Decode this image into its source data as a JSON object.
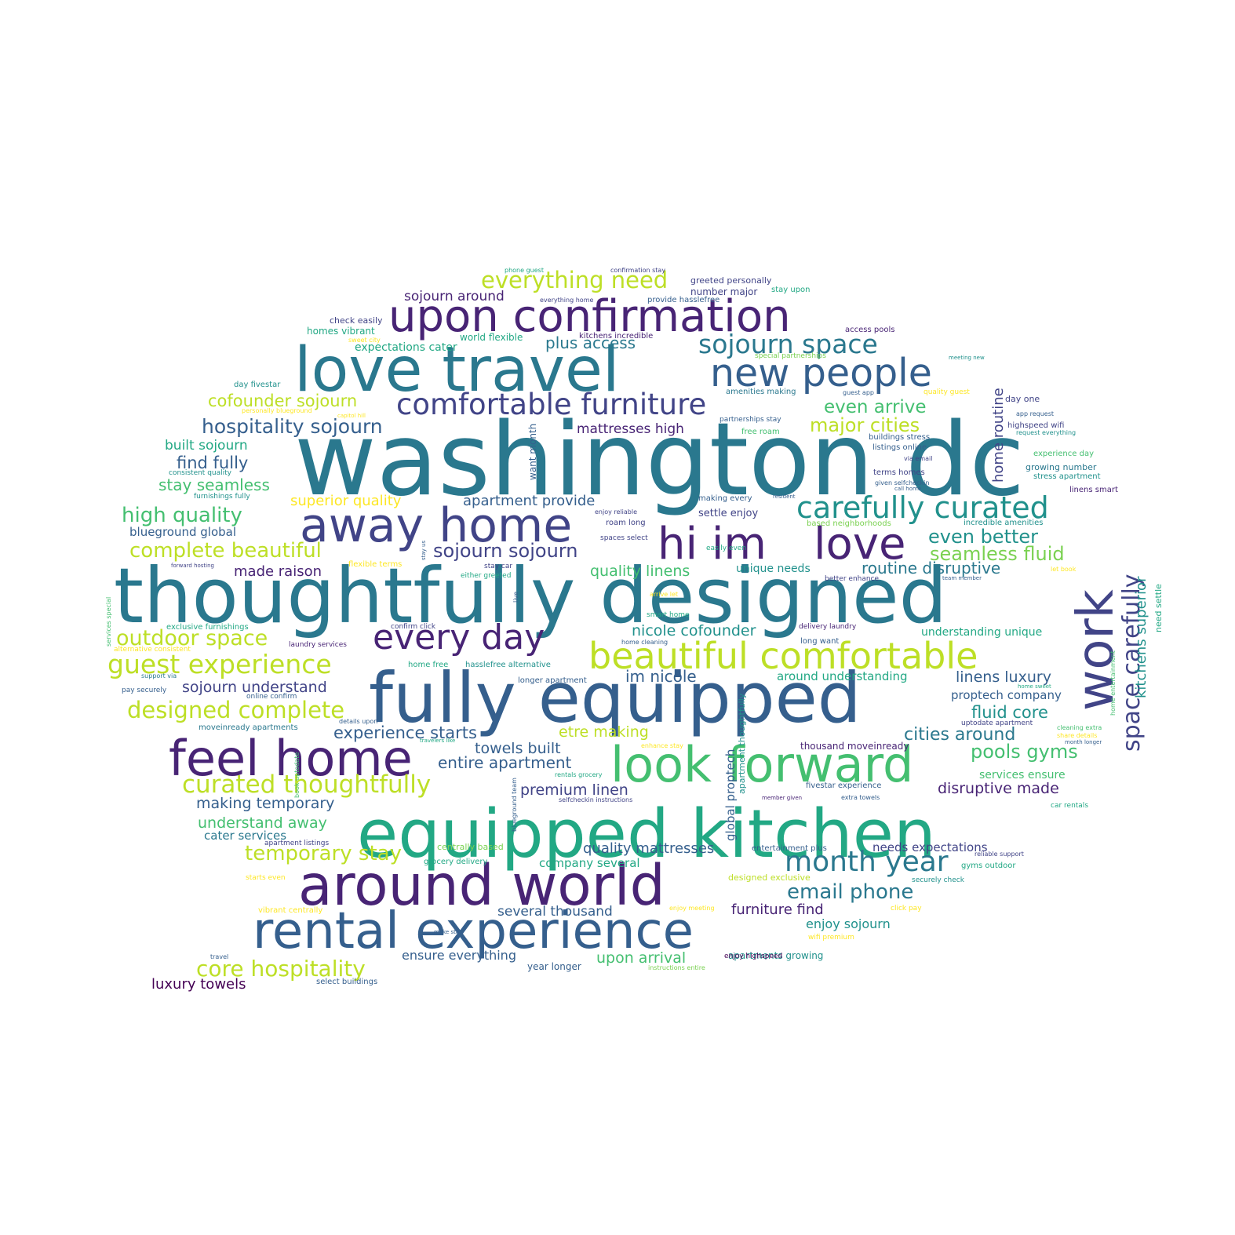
{
  "palette": {
    "p1": "#440154",
    "p2": "#482475",
    "p3": "#414487",
    "p4": "#355f8d",
    "p5": "#2a788e",
    "p6": "#21918c",
    "p7": "#22a884",
    "p8": "#44bf70",
    "p9": "#7ad151",
    "p10": "#bddf26",
    "p11": "#fde725"
  },
  "words": [
    {
      "text": "washington dc",
      "color": "p5"
    },
    {
      "text": "thoughtfully designed",
      "color": "p5"
    },
    {
      "text": "fully equipped",
      "color": "p4"
    },
    {
      "text": "equipped kitchen",
      "color": "p7"
    },
    {
      "text": "love travel",
      "color": "p5"
    },
    {
      "text": "upon confirmation",
      "color": "p2"
    },
    {
      "text": "around world",
      "color": "p2"
    },
    {
      "text": "rental experience",
      "color": "p4"
    },
    {
      "text": "feel home",
      "color": "p2"
    },
    {
      "text": "look forward",
      "color": "p8"
    },
    {
      "text": "away home",
      "color": "p3"
    },
    {
      "text": "hi im",
      "color": "p2"
    },
    {
      "text": "love",
      "color": "p2"
    },
    {
      "text": "work",
      "color": "p3"
    },
    {
      "text": "new people",
      "color": "p4"
    },
    {
      "text": "beautiful comfortable",
      "color": "p10"
    },
    {
      "text": "every day",
      "color": "p2"
    },
    {
      "text": "carefully curated",
      "color": "p6"
    },
    {
      "text": "comfortable furniture",
      "color": "p3"
    },
    {
      "text": "sojourn space",
      "color": "p5"
    },
    {
      "text": "everything need",
      "color": "p10"
    },
    {
      "text": "guest experience",
      "color": "p10"
    },
    {
      "text": "curated thoughtfully",
      "color": "p10"
    },
    {
      "text": "designed complete",
      "color": "p10"
    },
    {
      "text": "month year",
      "color": "p5"
    },
    {
      "text": "space carefully",
      "color": "p3"
    },
    {
      "text": "core hospitality",
      "color": "p10"
    },
    {
      "text": "outdoor space",
      "color": "p10"
    },
    {
      "text": "complete beautiful",
      "color": "p10"
    },
    {
      "text": "high quality",
      "color": "p8"
    },
    {
      "text": "hospitality sojourn",
      "color": "p4"
    },
    {
      "text": "email phone",
      "color": "p5"
    },
    {
      "text": "temporary stay",
      "color": "p10"
    },
    {
      "text": "sojourn sojourn",
      "color": "p3"
    },
    {
      "text": "even better",
      "color": "p6"
    },
    {
      "text": "seamless fluid",
      "color": "p9"
    },
    {
      "text": "major cities",
      "color": "p10"
    },
    {
      "text": "even arrive",
      "color": "p8"
    },
    {
      "text": "pools gyms",
      "color": "p8"
    },
    {
      "text": "cities around",
      "color": "p5"
    },
    {
      "text": "experience starts",
      "color": "p4"
    },
    {
      "text": "cofounder sojourn",
      "color": "p10"
    },
    {
      "text": "routine disruptive",
      "color": "p5"
    },
    {
      "text": "kitchens superior",
      "color": "p6"
    },
    {
      "text": "fluid core",
      "color": "p6"
    },
    {
      "text": "plus access",
      "color": "p5"
    },
    {
      "text": "find fully",
      "color": "p4"
    },
    {
      "text": "stay seamless",
      "color": "p8"
    },
    {
      "text": "nicole cofounder",
      "color": "p6"
    },
    {
      "text": "quality linens",
      "color": "p8"
    },
    {
      "text": "entire apartment",
      "color": "p4"
    },
    {
      "text": "etre making",
      "color": "p10"
    },
    {
      "text": "premium linen",
      "color": "p3"
    },
    {
      "text": "towels built",
      "color": "p4"
    },
    {
      "text": "sojourn understand",
      "color": "p3"
    },
    {
      "text": "making temporary",
      "color": "p4"
    },
    {
      "text": "understand away",
      "color": "p8"
    },
    {
      "text": "sojourn around",
      "color": "p2"
    },
    {
      "text": "mattresses high",
      "color": "p2"
    },
    {
      "text": "apartment provide",
      "color": "p4"
    },
    {
      "text": "superior quality",
      "color": "p11"
    },
    {
      "text": "built sojourn",
      "color": "p7"
    },
    {
      "text": "home routine",
      "color": "p3"
    },
    {
      "text": "linens luxury",
      "color": "p4"
    },
    {
      "text": "im nicole",
      "color": "p4"
    },
    {
      "text": "disruptive made",
      "color": "p2"
    },
    {
      "text": "quality mattresses",
      "color": "p4"
    },
    {
      "text": "made raison",
      "color": "p2"
    },
    {
      "text": "luxury towels",
      "color": "p1"
    },
    {
      "text": "upon arrival",
      "color": "p8"
    },
    {
      "text": "furniture find",
      "color": "p2"
    },
    {
      "text": "several thousand",
      "color": "p4"
    },
    {
      "text": "enjoy sojourn",
      "color": "p6"
    },
    {
      "text": "ensure everything",
      "color": "p4"
    },
    {
      "text": "company several",
      "color": "p7"
    },
    {
      "text": "around understanding",
      "color": "p7"
    },
    {
      "text": "proptech company",
      "color": "p4"
    },
    {
      "text": "needs expectations",
      "color": "p3"
    },
    {
      "text": "global proptech",
      "color": "p4"
    },
    {
      "text": "blueground global",
      "color": "p4"
    },
    {
      "text": "cater services",
      "color": "p5"
    },
    {
      "text": "expectations cater",
      "color": "p7"
    },
    {
      "text": "services ensure",
      "color": "p8"
    },
    {
      "text": "understanding unique",
      "color": "p7"
    },
    {
      "text": "settle enjoy",
      "color": "p3"
    },
    {
      "text": "unique needs",
      "color": "p6"
    },
    {
      "text": "apartments growing",
      "color": "p6"
    },
    {
      "text": "year longer",
      "color": "p4"
    },
    {
      "text": "growing number",
      "color": "p5"
    },
    {
      "text": "homes vibrant",
      "color": "p7"
    },
    {
      "text": "want month",
      "color": "p4"
    },
    {
      "text": "need settle",
      "color": "p7"
    },
    {
      "text": "thousand moveinready",
      "color": "p2"
    },
    {
      "text": "apartment thoughtfully",
      "color": "p6"
    },
    {
      "text": "world flexible",
      "color": "p7"
    },
    {
      "text": "check easily",
      "color": "p3"
    },
    {
      "text": "number major",
      "color": "p3"
    },
    {
      "text": "greeted personally",
      "color": "p3"
    },
    {
      "text": "stay upon",
      "color": "p7"
    },
    {
      "text": "provide hasslefree",
      "color": "p4"
    },
    {
      "text": "kitchens incredible",
      "color": "p2"
    },
    {
      "text": "day fivestar",
      "color": "p6"
    },
    {
      "text": "access pools",
      "color": "p2"
    },
    {
      "text": "amenities making",
      "color": "p5"
    },
    {
      "text": "day one",
      "color": "p3"
    },
    {
      "text": "highspeed wifi",
      "color": "p3"
    },
    {
      "text": "listings online",
      "color": "p4"
    },
    {
      "text": "buildings stress",
      "color": "p4"
    },
    {
      "text": "terms homes",
      "color": "p3"
    },
    {
      "text": "experience day",
      "color": "p8"
    },
    {
      "text": "stress apartment",
      "color": "p6"
    },
    {
      "text": "linens smart",
      "color": "p2"
    },
    {
      "text": "consistent quality",
      "color": "p6"
    },
    {
      "text": "furnishings fully",
      "color": "p6"
    },
    {
      "text": "free roam",
      "color": "p8"
    },
    {
      "text": "making every",
      "color": "p4"
    },
    {
      "text": "roam long",
      "color": "p3"
    },
    {
      "text": "incredible amenities",
      "color": "p6"
    },
    {
      "text": "based neighborhoods",
      "color": "p9"
    },
    {
      "text": "exclusive furnishings",
      "color": "p7"
    },
    {
      "text": "laundry services",
      "color": "p2"
    },
    {
      "text": "delivery laundry",
      "color": "p2"
    },
    {
      "text": "long want",
      "color": "p4"
    },
    {
      "text": "better enhance",
      "color": "p3"
    },
    {
      "text": "pay securely",
      "color": "p4"
    },
    {
      "text": "online confirm",
      "color": "p4"
    },
    {
      "text": "home free",
      "color": "p7"
    },
    {
      "text": "hasslefree alternative",
      "color": "p6"
    },
    {
      "text": "longer apartment",
      "color": "p4"
    },
    {
      "text": "moveinready apartments",
      "color": "p5"
    },
    {
      "text": "uptodate apartment",
      "color": "p3"
    },
    {
      "text": "fivestar experience",
      "color": "p4"
    },
    {
      "text": "car rentals",
      "color": "p7"
    },
    {
      "text": "centrally based",
      "color": "p9"
    },
    {
      "text": "grocery delivery",
      "color": "p7"
    },
    {
      "text": "designed exclusive",
      "color": "p10"
    },
    {
      "text": "securely check",
      "color": "p6"
    },
    {
      "text": "gyms outdoor",
      "color": "p7"
    },
    {
      "text": "vibrant centrally",
      "color": "p11"
    },
    {
      "text": "starts even",
      "color": "p11"
    },
    {
      "text": "wifi premium",
      "color": "p11"
    },
    {
      "text": "enjoy highspeed",
      "color": "p1"
    },
    {
      "text": "instructions entire",
      "color": "p9"
    },
    {
      "text": "select buildings",
      "color": "p4"
    },
    {
      "text": "entertainment plus",
      "color": "p4"
    },
    {
      "text": "reliable support",
      "color": "p3"
    },
    {
      "text": "selfcheckin instructions",
      "color": "p3"
    },
    {
      "text": "rentals grocery",
      "color": "p7"
    },
    {
      "text": "extra towels",
      "color": "p4"
    },
    {
      "text": "member given",
      "color": "p2"
    },
    {
      "text": "enhance stay",
      "color": "p11"
    },
    {
      "text": "smart home",
      "color": "p7"
    },
    {
      "text": "confirm click",
      "color": "p3"
    },
    {
      "text": "alternative consistent",
      "color": "p11"
    },
    {
      "text": "either greeted",
      "color": "p7"
    },
    {
      "text": "stay car",
      "color": "p3"
    },
    {
      "text": "flexible terms",
      "color": "p11"
    },
    {
      "text": "easily even",
      "color": "p7"
    },
    {
      "text": "let book",
      "color": "p11"
    },
    {
      "text": "team member",
      "color": "p4"
    },
    {
      "text": "forward hosting",
      "color": "p3"
    },
    {
      "text": "spaces select",
      "color": "p3"
    },
    {
      "text": "enjoy reliable",
      "color": "p3"
    },
    {
      "text": "resident",
      "color": "p4"
    },
    {
      "text": "call home",
      "color": "p4"
    },
    {
      "text": "given selfcheckin",
      "color": "p4"
    },
    {
      "text": "via email",
      "color": "p3"
    },
    {
      "text": "request everything",
      "color": "p6"
    },
    {
      "text": "app request",
      "color": "p4"
    },
    {
      "text": "guest app",
      "color": "p4"
    },
    {
      "text": "quality guest",
      "color": "p11"
    },
    {
      "text": "meeting new",
      "color": "p6"
    },
    {
      "text": "special partnerships",
      "color": "p9"
    },
    {
      "text": "partnerships stay",
      "color": "p4"
    },
    {
      "text": "personally blueground",
      "color": "p11"
    },
    {
      "text": "capitol hill",
      "color": "p11"
    },
    {
      "text": "sweet city",
      "color": "p11"
    },
    {
      "text": "phone guest",
      "color": "p7"
    },
    {
      "text": "confirmation stay",
      "color": "p3"
    },
    {
      "text": "everything home",
      "color": "p3"
    },
    {
      "text": "arrive let",
      "color": "p11"
    },
    {
      "text": "home cleaning",
      "color": "p4"
    },
    {
      "text": "details upon",
      "color": "p4"
    },
    {
      "text": "travelers like",
      "color": "p7"
    },
    {
      "text": "cleaning extra",
      "color": "p8"
    },
    {
      "text": "month longer",
      "color": "p4"
    },
    {
      "text": "home sweet",
      "color": "p7"
    },
    {
      "text": "share details",
      "color": "p11"
    },
    {
      "text": "click pay",
      "color": "p11"
    },
    {
      "text": "enjoy meeting",
      "color": "p11"
    },
    {
      "text": "make stay",
      "color": "p4"
    },
    {
      "text": "travel",
      "color": "p4"
    },
    {
      "text": "apartment listings",
      "color": "p3"
    },
    {
      "text": "support via",
      "color": "p5"
    },
    {
      "text": "services special",
      "color": "p8"
    },
    {
      "text": "home entertainment",
      "color": "p8"
    },
    {
      "text": "book uptodate",
      "color": "p8"
    },
    {
      "text": "blueground team",
      "color": "p4"
    },
    {
      "text": "stay us",
      "color": "p4"
    },
    {
      "text": "live",
      "color": "p4"
    }
  ]
}
